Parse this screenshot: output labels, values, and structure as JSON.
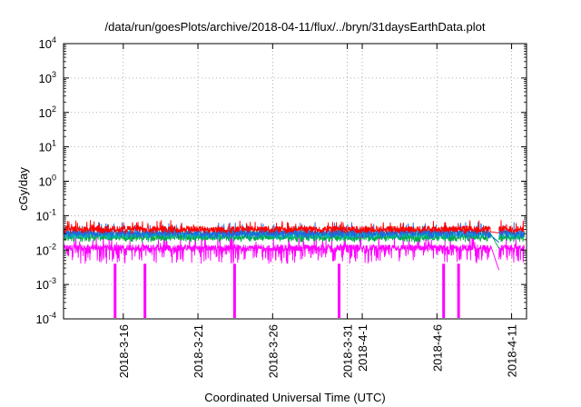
{
  "chart_data": {
    "type": "line",
    "title": "/data/run/goesPlots/archive/2018-04-11/flux/../bryn/31daysEarthData.plot",
    "xlabel": "Coordinated Universal Time (UTC)",
    "ylabel": "cGy/day",
    "yscale": "log",
    "ylim": [
      0.0001,
      10000
    ],
    "y_ticks": [
      {
        "base": "10",
        "exp": "-4"
      },
      {
        "base": "10",
        "exp": "-3"
      },
      {
        "base": "10",
        "exp": "-2"
      },
      {
        "base": "10",
        "exp": "-1"
      },
      {
        "base": "10",
        "exp": "0"
      },
      {
        "base": "10",
        "exp": "1"
      },
      {
        "base": "10",
        "exp": "2"
      },
      {
        "base": "10",
        "exp": "3"
      },
      {
        "base": "10",
        "exp": "4"
      }
    ],
    "xlim": [
      "2018-03-12",
      "2018-04-12"
    ],
    "x_ticks": [
      "2018-3-16",
      "2018-3-21",
      "2018-3-26",
      "2018-3-31",
      "2018-4-1",
      "2018-4-6",
      "2018-4-11"
    ],
    "grid": true,
    "data_gap": [
      "2018-04-09",
      "2018-04-10"
    ],
    "series": [
      {
        "color": "#ff0000",
        "typical": 0.042,
        "peak": 0.075,
        "low": 0.03
      },
      {
        "color": "#00b4b4",
        "typical": 0.03,
        "peak": 0.05,
        "low": 0.02
      },
      {
        "color": "#2266dd",
        "typical": 0.033,
        "peak": 0.065,
        "low": 0.022
      },
      {
        "color": "#00aa44",
        "typical": 0.025,
        "peak": 0.04,
        "low": 0.017
      },
      {
        "color": "#ff00ff",
        "typical": 0.012,
        "peak": 0.03,
        "low": 0.004,
        "dropouts": [
          "2018-03-15",
          "2018-03-17",
          "2018-03-23",
          "2018-03-30",
          "2018-04-06",
          "2018-04-07"
        ]
      }
    ]
  }
}
